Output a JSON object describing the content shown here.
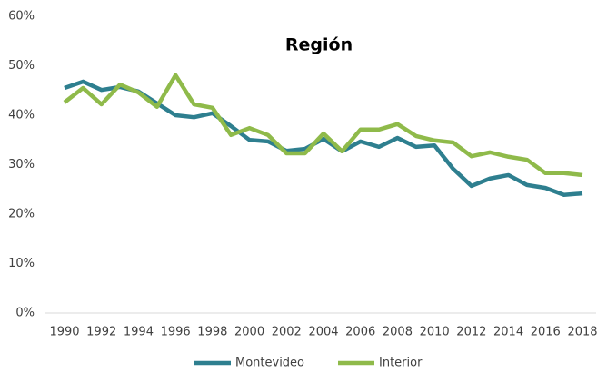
{
  "chart_data": {
    "type": "line",
    "title": "Región",
    "x": [
      1990,
      1991,
      1992,
      1993,
      1994,
      1995,
      1996,
      1997,
      1998,
      1999,
      2000,
      2001,
      2002,
      2003,
      2004,
      2005,
      2006,
      2007,
      2008,
      2009,
      2010,
      2011,
      2012,
      2013,
      2014,
      2015,
      2016,
      2017,
      2018
    ],
    "series": [
      {
        "name": "Montevideo",
        "color": "#2e7f8f",
        "values": [
          45.5,
          46.8,
          45.1,
          45.7,
          44.8,
          42.4,
          40.0,
          39.6,
          40.4,
          37.8,
          35.0,
          34.7,
          32.8,
          33.2,
          35.2,
          32.7,
          34.7,
          33.6,
          35.4,
          33.6,
          33.9,
          29.2,
          25.7,
          27.2,
          27.9,
          25.9,
          25.3,
          23.9,
          24.2
        ]
      },
      {
        "name": "Interior",
        "color": "#8fba4a",
        "values": [
          42.6,
          45.5,
          42.2,
          46.2,
          44.6,
          41.7,
          48.1,
          42.2,
          41.5,
          36.0,
          37.4,
          36.0,
          32.3,
          32.3,
          36.3,
          32.7,
          37.1,
          37.1,
          38.2,
          35.8,
          34.9,
          34.5,
          31.7,
          32.5,
          31.6,
          31.0,
          28.3,
          28.3,
          27.9
        ]
      }
    ],
    "xlim": [
      1990,
      2018
    ],
    "xticks": [
      1990,
      1992,
      1994,
      1996,
      1998,
      2000,
      2002,
      2004,
      2006,
      2008,
      2010,
      2012,
      2014,
      2016,
      2018
    ],
    "ylim": [
      0,
      60
    ],
    "yticks": [
      {
        "value": 0,
        "label": "0%"
      },
      {
        "value": 10,
        "label": "10%"
      },
      {
        "value": 20,
        "label": "20%"
      },
      {
        "value": 30,
        "label": "30%"
      },
      {
        "value": 40,
        "label": "40%"
      },
      {
        "value": 50,
        "label": "50%"
      },
      {
        "value": 60,
        "label": "60%"
      }
    ],
    "grid": false,
    "legend": "bottom"
  }
}
